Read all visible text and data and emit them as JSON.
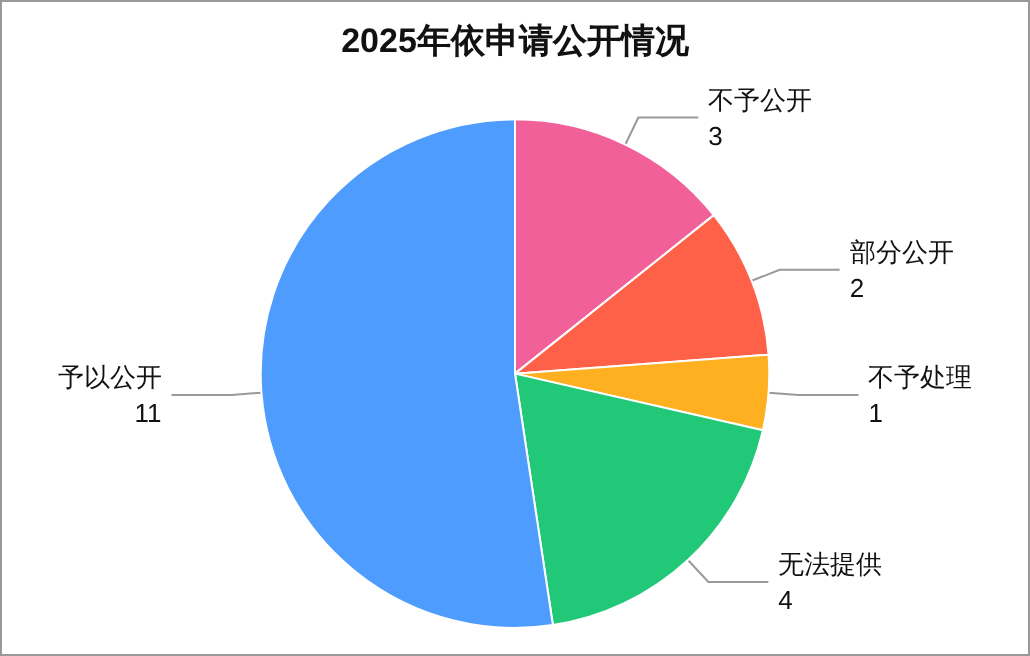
{
  "chart_data": {
    "type": "pie",
    "title": "2025年依申请公开情况",
    "categories": [
      "不予公开",
      "部分公开",
      "不予处理",
      "无法提供",
      "予以公开"
    ],
    "values": [
      3,
      2,
      1,
      4,
      11
    ],
    "colors": [
      "#f2609a",
      "#ff6048",
      "#ffb020",
      "#20c878",
      "#4f9cff"
    ],
    "data_labels": true
  }
}
